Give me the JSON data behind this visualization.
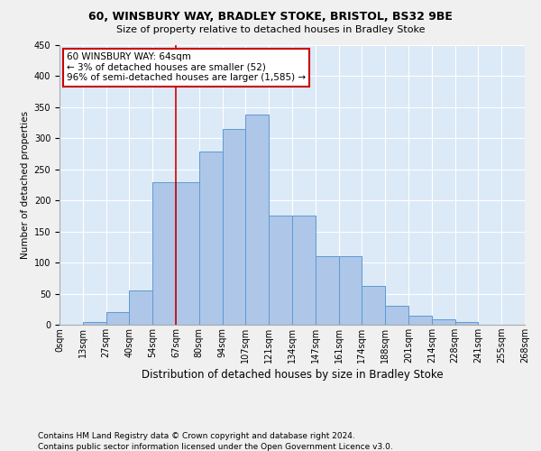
{
  "title1": "60, WINSBURY WAY, BRADLEY STOKE, BRISTOL, BS32 9BE",
  "title2": "Size of property relative to detached houses in Bradley Stoke",
  "xlabel": "Distribution of detached houses by size in Bradley Stoke",
  "ylabel": "Number of detached properties",
  "footnote1": "Contains HM Land Registry data © Crown copyright and database right 2024.",
  "footnote2": "Contains public sector information licensed under the Open Government Licence v3.0.",
  "bin_labels": [
    "0sqm",
    "13sqm",
    "27sqm",
    "40sqm",
    "54sqm",
    "67sqm",
    "80sqm",
    "94sqm",
    "107sqm",
    "121sqm",
    "134sqm",
    "147sqm",
    "161sqm",
    "174sqm",
    "188sqm",
    "201sqm",
    "214sqm",
    "228sqm",
    "241sqm",
    "255sqm",
    "268sqm"
  ],
  "bar_heights": [
    0,
    5,
    20,
    55,
    230,
    230,
    278,
    315,
    338,
    175,
    175,
    110,
    110,
    62,
    30,
    15,
    8,
    5,
    0,
    0
  ],
  "bar_color": "#aec6e8",
  "bar_edge_color": "#5b9bd5",
  "vline_x": 5.0,
  "vline_color": "#cc0000",
  "annotation_text": "60 WINSBURY WAY: 64sqm\n← 3% of detached houses are smaller (52)\n96% of semi-detached houses are larger (1,585) →",
  "annotation_box_color": "#ffffff",
  "annotation_box_edge": "#cc0000",
  "ylim": [
    0,
    450
  ],
  "yticks": [
    0,
    50,
    100,
    150,
    200,
    250,
    300,
    350,
    400,
    450
  ],
  "background_color": "#dce9f7",
  "fig_background": "#f0f0f0",
  "grid_color": "#ffffff",
  "title1_fontsize": 9,
  "title2_fontsize": 8,
  "xlabel_fontsize": 8.5,
  "ylabel_fontsize": 7.5,
  "tick_fontsize": 7,
  "annotation_fontsize": 7.5,
  "footnote_fontsize": 6.5
}
